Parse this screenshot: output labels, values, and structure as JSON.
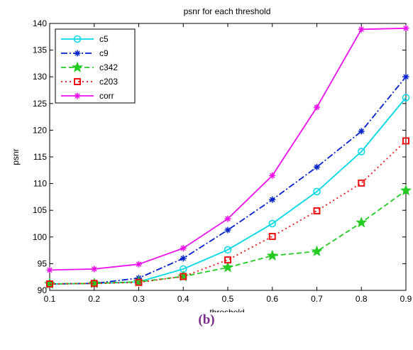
{
  "caption": "(b)",
  "chart_data": {
    "type": "line",
    "title": "psnr for each threshold",
    "xlabel": "threshold",
    "ylabel": "psnr",
    "xlim": [
      0.1,
      0.9
    ],
    "ylim": [
      90,
      140
    ],
    "x_ticks": [
      "0.1",
      "0.2",
      "0.3",
      "0.4",
      "0.5",
      "0.6",
      "0.7",
      "0.8",
      "0.9"
    ],
    "y_ticks": [
      "90",
      "95",
      "100",
      "105",
      "110",
      "115",
      "120",
      "125",
      "130",
      "135",
      "140"
    ],
    "grid": false,
    "legend_position": "top-left",
    "x": [
      0.1,
      0.2,
      0.3,
      0.4,
      0.5,
      0.6,
      0.7,
      0.8,
      0.9
    ],
    "series": [
      {
        "name": "c5",
        "color": "#00d8e8",
        "line": "solid",
        "marker": "circle",
        "values": [
          91.2,
          91.3,
          91.6,
          94.0,
          97.6,
          102.5,
          108.5,
          116.0,
          126.1
        ]
      },
      {
        "name": "c9",
        "color": "#0022cc",
        "line": "dash-dot",
        "marker": "star",
        "values": [
          91.2,
          91.3,
          92.3,
          96.0,
          101.3,
          107.0,
          113.1,
          119.8,
          130.0
        ]
      },
      {
        "name": "c342",
        "color": "#22cc22",
        "line": "dashed",
        "marker": "pentagram",
        "values": [
          91.2,
          91.3,
          91.6,
          92.6,
          94.3,
          96.5,
          97.3,
          102.7,
          108.7
        ]
      },
      {
        "name": "c203",
        "color": "#ee1111",
        "line": "dotted",
        "marker": "square",
        "values": [
          91.2,
          91.3,
          91.5,
          92.6,
          95.7,
          100.1,
          104.9,
          110.1,
          118.0
        ]
      },
      {
        "name": "corr",
        "color": "#ee11ee",
        "line": "solid",
        "marker": "star",
        "values": [
          93.8,
          94.0,
          94.9,
          97.9,
          103.4,
          111.5,
          124.3,
          138.9,
          139.1
        ]
      }
    ]
  }
}
